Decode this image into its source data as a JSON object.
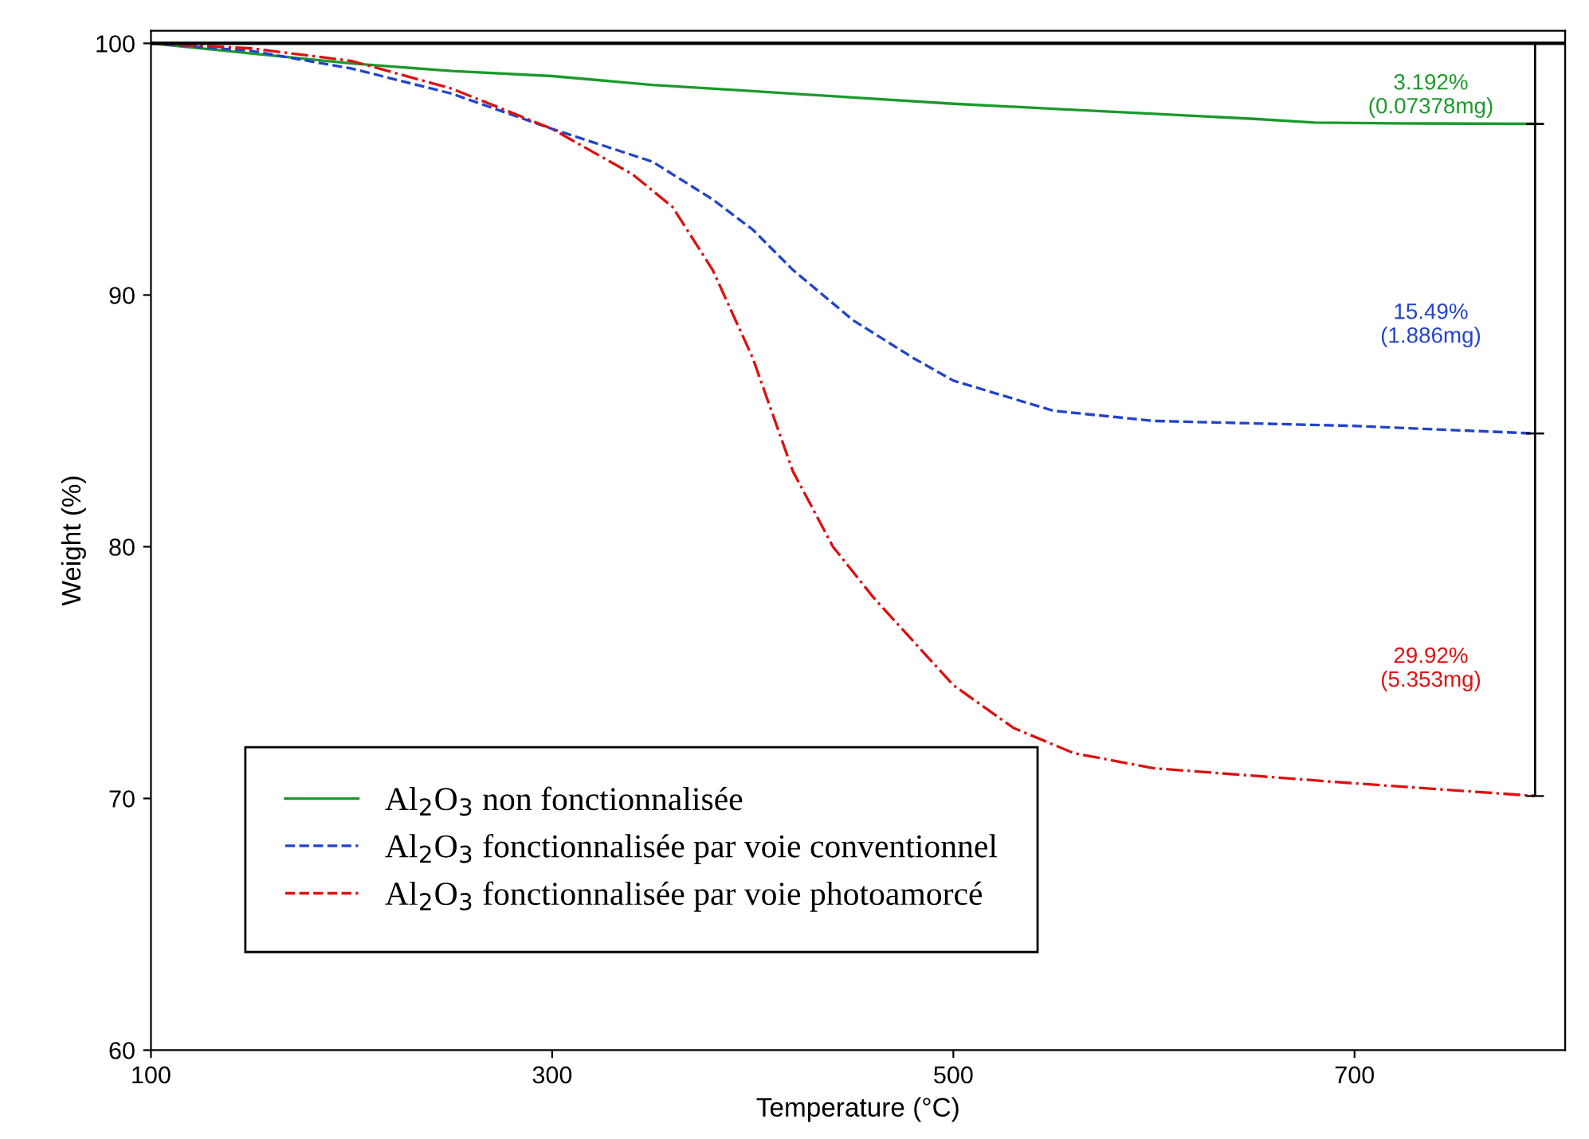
{
  "chart_data": {
    "type": "line",
    "xlabel": "Temperature (°C)",
    "ylabel": "Weight (%)",
    "xlim": [
      100,
      805
    ],
    "ylim": [
      60,
      100.5
    ],
    "xticks": [
      100,
      300,
      500,
      700
    ],
    "yticks": [
      60,
      70,
      80,
      90,
      100
    ],
    "grid": false,
    "legend": "bottom left",
    "series": [
      {
        "name": "Al$_{2}$O$_{3}$ non fonctionnalisée",
        "color": "#1a9a2a",
        "line_style": "solid",
        "x": [
          100,
          150,
          200,
          250,
          300,
          350,
          400,
          450,
          500,
          550,
          600,
          650,
          680,
          720,
          790
        ],
        "values": [
          100,
          99.6,
          99.2,
          98.9,
          98.7,
          98.35,
          98.1,
          97.85,
          97.6,
          97.4,
          97.2,
          97.0,
          96.85,
          96.82,
          96.8
        ],
        "errors": [
          null,
          null,
          null,
          null,
          null,
          null,
          null,
          null,
          null,
          null,
          null,
          null,
          null,
          null,
          [
            96.8,
            100
          ]
        ]
      },
      {
        "name": "Al$_{2}$O$_{3}$ fonctionnalisée par voie conventionnel",
        "color": "#2244cc",
        "line_style": "dashed",
        "x": [
          100,
          150,
          200,
          250,
          300,
          350,
          380,
          400,
          420,
          450,
          480,
          500,
          550,
          600,
          700,
          790
        ],
        "values": [
          100,
          99.7,
          99.0,
          98.0,
          96.6,
          95.3,
          93.8,
          92.6,
          91.0,
          89.0,
          87.5,
          86.6,
          85.4,
          85.0,
          84.8,
          84.5
        ],
        "errors": [
          null,
          null,
          null,
          null,
          null,
          null,
          null,
          null,
          null,
          null,
          null,
          null,
          null,
          null,
          null,
          [
            84.5,
            96.8
          ]
        ]
      },
      {
        "name": "Al$_{2}$O$_{3}$ fonctionnalisée par voie photoamorcé",
        "color": "#dd1111",
        "line_style": "dashdot",
        "x": [
          100,
          150,
          200,
          250,
          300,
          340,
          360,
          380,
          400,
          420,
          440,
          460,
          500,
          530,
          560,
          600,
          700,
          790
        ],
        "values": [
          100,
          99.8,
          99.3,
          98.2,
          96.6,
          94.8,
          93.5,
          91.0,
          87.5,
          83.0,
          80.0,
          78.0,
          74.5,
          72.8,
          71.8,
          71.2,
          70.6,
          70.1
        ],
        "errors": [
          null,
          null,
          null,
          null,
          null,
          null,
          null,
          null,
          null,
          null,
          null,
          null,
          null,
          null,
          null,
          null,
          null,
          [
            70.1,
            84.5
          ]
        ]
      }
    ],
    "ref_lines": [
      {
        "axis": "y",
        "value": 100,
        "color": "#000000"
      }
    ],
    "annotations": [
      "3.192%\n(0.07378mg)",
      "15.49%\n(1.886mg)",
      "29.92%\n(5.353mg)"
    ]
  }
}
